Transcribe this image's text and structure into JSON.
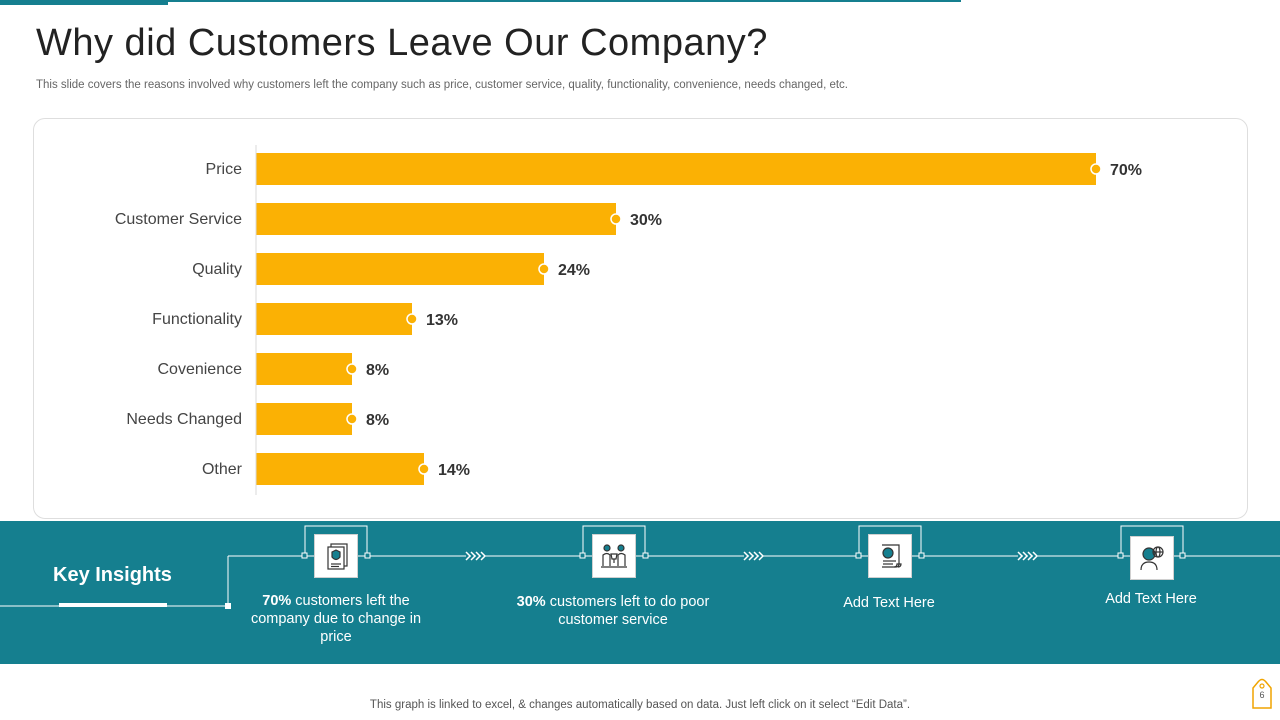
{
  "slide": {
    "title": "Why did Customers Leave Our Company?",
    "subtitle": "This slide covers the reasons involved why customers left the company such as price, customer service, quality, functionality, convenience, needs changed, etc.",
    "footer": "This graph is linked to excel, & changes automatically based on data. Just left click on it select “Edit Data”.",
    "page_number": "6"
  },
  "colors": {
    "bar": "#FBB104",
    "teal": "#157F8F",
    "text_dark": "#333333"
  },
  "chart_data": {
    "type": "bar",
    "orientation": "horizontal",
    "categories": [
      "Price",
      "Customer Service",
      "Quality",
      "Functionality",
      "Covenience",
      "Needs Changed",
      "Other"
    ],
    "values": [
      70,
      30,
      24,
      13,
      8,
      8,
      14
    ],
    "labels": [
      "70%",
      "30%",
      "24%",
      "13%",
      "8%",
      "8%",
      "14%"
    ],
    "unit": "%",
    "xlim": [
      0,
      70
    ],
    "title": "",
    "xlabel": "",
    "ylabel": "",
    "grid": false,
    "legend": "none"
  },
  "insights": {
    "title": "Key Insights",
    "items": [
      {
        "icon": "shield-document-icon",
        "bold": "70%",
        "text": " customers left the company due to change in price"
      },
      {
        "icon": "team-trophy-icon",
        "bold": "30%",
        "text": " customers left to do poor customer service"
      },
      {
        "icon": "globe-scroll-icon",
        "bold": "",
        "text": "Add Text Here"
      },
      {
        "icon": "person-globe-icon",
        "bold": "",
        "text": "Add Text Here"
      }
    ]
  }
}
